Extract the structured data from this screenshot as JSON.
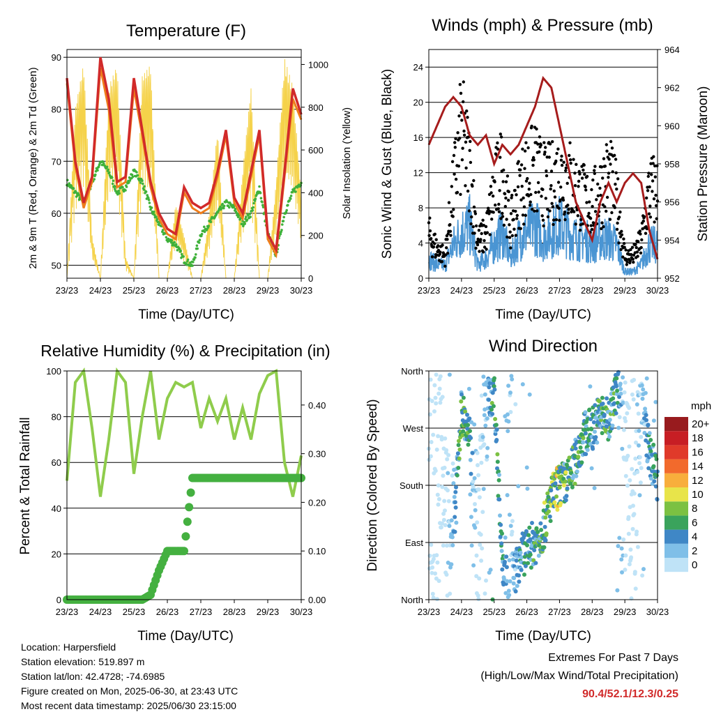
{
  "colors": {
    "temp_2m": "#d12a2a",
    "temp_9m": "#ef7d1b",
    "dewpoint": "#3fb13a",
    "insolation": "#f5d24a",
    "sonic_wind": "#4a95d3",
    "gust": "#000000",
    "pressure": "#a61c1c",
    "rh": "#8fcc4c",
    "precip": "#44b040",
    "extremes": "#d12a2a"
  },
  "time_ticks": [
    "23/23",
    "24/23",
    "25/23",
    "26/23",
    "27/23",
    "28/23",
    "29/23",
    "30/23"
  ],
  "charts": {
    "temperature": {
      "title": "Temperature (F)",
      "xlabel": "Time (Day/UTC)",
      "ylabel_left": "2m & 9m T (Red, Orange) & 2m Td (Green)",
      "ylabel_right": "Solar Insolation (Yellow)",
      "left_ticks": [
        "50",
        "60",
        "70",
        "80",
        "90"
      ],
      "right_ticks": [
        "0",
        "200",
        "400",
        "600",
        "800",
        "1000"
      ]
    },
    "winds": {
      "title": "Winds (mph) & Pressure (mb)",
      "xlabel": "Time (Day/UTC)",
      "ylabel_left": "Sonic Wind & Gust (Blue, Black)",
      "ylabel_right": "Station Pressure (Maroon)",
      "left_ticks": [
        "0",
        "4",
        "8",
        "12",
        "16",
        "20",
        "24"
      ],
      "right_ticks": [
        "952",
        "954",
        "956",
        "958",
        "960",
        "962",
        "964"
      ]
    },
    "humidity": {
      "title": "Relative Humidity (%) & Precipitation (in)",
      "xlabel": "Time (Day/UTC)",
      "ylabel_left": "Percent & Total Rainfall",
      "left_ticks": [
        "0",
        "20",
        "40",
        "60",
        "80",
        "100"
      ],
      "right_ticks": [
        "0.00",
        "0.10",
        "0.20",
        "0.30",
        "0.40"
      ]
    },
    "direction": {
      "title": "Wind Direction",
      "xlabel": "Time (Day/UTC)",
      "ylabel_left": "Direction (Colored By Speed)",
      "left_ticks": [
        "North",
        "East",
        "South",
        "West",
        "North"
      ],
      "legend_title": "mph",
      "legend_labels": [
        "0",
        "2",
        "4",
        "6",
        "8",
        "10",
        "12",
        "14",
        "16",
        "18",
        "20+"
      ],
      "legend_colors": [
        "#bfe3f7",
        "#7fbfe8",
        "#3f87c6",
        "#3aa35c",
        "#7cc142",
        "#e8e44a",
        "#f8ae3c",
        "#f26a2c",
        "#e03a2a",
        "#c71e24",
        "#981b1e"
      ]
    }
  },
  "chart_data": [
    {
      "type": "line",
      "title": "Temperature (F)",
      "x": [
        0,
        0.25,
        0.5,
        0.75,
        1,
        1.25,
        1.5,
        1.75,
        2,
        2.25,
        2.5,
        2.75,
        3,
        3.25,
        3.5,
        3.75,
        4,
        4.25,
        4.5,
        4.75,
        5,
        5.25,
        5.5,
        5.75,
        6,
        6.25,
        6.5,
        6.75,
        7
      ],
      "ylim": [
        47.5,
        91.5
      ],
      "y2lim": [
        0,
        1070
      ],
      "series": [
        {
          "values": [
            86,
            70,
            62,
            67,
            90,
            82,
            66,
            67,
            86,
            76,
            66,
            60,
            57,
            56,
            65,
            62,
            61,
            62,
            68,
            76,
            63,
            60,
            68,
            76,
            56,
            53,
            68,
            84,
            79
          ]
        },
        {
          "values": [
            85,
            69,
            61,
            66,
            88,
            80,
            65,
            66,
            84,
            75,
            65,
            59,
            56,
            55,
            64,
            61,
            60,
            61,
            67,
            75,
            62,
            59,
            67,
            75,
            55,
            52,
            67,
            82,
            78
          ]
        },
        {
          "values": [
            66,
            64,
            62,
            66,
            70,
            68,
            64,
            65,
            68,
            66,
            61,
            58,
            55,
            54,
            51,
            50,
            56,
            58,
            60,
            62,
            61,
            58,
            60,
            65,
            56,
            52,
            60,
            64,
            66
          ]
        },
        {
          "values": [
            0,
            800,
            1010,
            200,
            0,
            900,
            1000,
            100,
            0,
            950,
            1000,
            0,
            0,
            350,
            200,
            0,
            0,
            300,
            700,
            0,
            0,
            500,
            900,
            0,
            0,
            450,
            1030,
            900,
            400
          ]
        }
      ]
    },
    {
      "type": "scatter",
      "title": "Winds (mph) & Pressure (mb)",
      "x": [
        0,
        0.25,
        0.5,
        0.75,
        1,
        1.25,
        1.5,
        1.75,
        2,
        2.25,
        2.5,
        2.75,
        3,
        3.25,
        3.5,
        3.75,
        4,
        4.25,
        4.5,
        4.75,
        5,
        5.25,
        5.5,
        5.75,
        6,
        6.25,
        6.5,
        6.75,
        7
      ],
      "ylim": [
        0,
        26
      ],
      "y2lim": [
        952,
        964
      ],
      "series": [
        {
          "values": [
            3,
            2,
            2,
            5,
            7,
            8,
            2,
            3,
            5,
            7,
            3,
            6,
            7,
            8,
            6,
            7,
            8,
            7,
            6,
            6,
            5,
            6,
            6,
            5,
            1,
            1,
            2,
            5,
            5
          ]
        },
        {
          "values": [
            6,
            4,
            3,
            12,
            20,
            15,
            5,
            6,
            12,
            15,
            7,
            12,
            14,
            15,
            13,
            13,
            14,
            14,
            12,
            11,
            10,
            12,
            14,
            11,
            3,
            3,
            5,
            12,
            12
          ]
        },
        {
          "values": [
            959,
            960,
            961,
            961.5,
            961,
            959.5,
            959,
            959.5,
            958,
            959,
            958.5,
            959,
            960,
            961,
            962.5,
            962,
            960,
            958,
            956,
            955,
            954,
            956,
            957,
            956,
            957,
            957.5,
            957,
            954.5,
            953
          ]
        }
      ]
    },
    {
      "type": "line",
      "title": "Relative Humidity (%) & Precipitation (in)",
      "x": [
        0,
        0.25,
        0.5,
        0.75,
        1,
        1.25,
        1.5,
        1.75,
        2,
        2.25,
        2.5,
        2.75,
        3,
        3.25,
        3.5,
        3.75,
        4,
        4.25,
        4.5,
        4.75,
        5,
        5.25,
        5.5,
        5.75,
        6,
        6.25,
        6.5,
        6.75,
        7
      ],
      "ylim": [
        0,
        100
      ],
      "y2lim": [
        0,
        0.47
      ],
      "series": [
        {
          "values": [
            52,
            95,
            100,
            75,
            45,
            70,
            100,
            95,
            55,
            80,
            100,
            70,
            88,
            95,
            93,
            95,
            75,
            88,
            78,
            88,
            70,
            84,
            70,
            90,
            98,
            100,
            60,
            45,
            63
          ]
        },
        {
          "values": [
            0,
            0,
            0,
            0,
            0,
            0,
            0,
            0,
            0,
            0,
            0.01,
            0.06,
            0.1,
            0.1,
            0.1,
            0.25,
            0.25,
            0.25,
            0.25,
            0.25,
            0.25,
            0.25,
            0.25,
            0.25,
            0.25,
            0.25,
            0.25,
            0.25,
            0.25
          ]
        }
      ]
    },
    {
      "type": "scatter",
      "title": "Wind Direction",
      "x": [
        0,
        0.25,
        0.5,
        0.75,
        1,
        1.25,
        1.5,
        1.75,
        2,
        2.25,
        2.5,
        2.75,
        3,
        3.25,
        3.5,
        3.75,
        4,
        4.25,
        4.5,
        4.75,
        5,
        5.25,
        5.5,
        5.75,
        6,
        6.25,
        6.5,
        6.75,
        7
      ],
      "ylim": [
        0,
        360
      ],
      "series": [
        {
          "values": [
            330,
            300,
            150,
            100,
            300,
            250,
            100,
            310,
            330,
            60,
            20,
            60,
            80,
            90,
            110,
            160,
            180,
            185,
            220,
            260,
            270,
            290,
            280,
            330,
            350,
            40,
            320,
            230,
            190
          ]
        },
        {
          "values": [
            1,
            1,
            1,
            3,
            7,
            5,
            1,
            2,
            7,
            5,
            2,
            4,
            5,
            6,
            7,
            8,
            9,
            7,
            6,
            6,
            5,
            6,
            7,
            5,
            1,
            1,
            2,
            5,
            5
          ]
        }
      ]
    }
  ],
  "footer": {
    "location": "Location: Harpersfield",
    "elevation": "Station elevation: 519.897 m",
    "latlon": "Station lat/lon: 42.4728; -74.6985",
    "created": "Figure created on Mon, 2025-06-30, at 23:43 UTC",
    "recent": "Most recent data timestamp: 2025/06/30 23:15:00",
    "extremes_title": "Extremes For Past 7 Days",
    "extremes_subtitle": "(High/Low/Max Wind/Total Precipitation)",
    "extremes_values": "90.4/52.1/12.3/0.25"
  }
}
